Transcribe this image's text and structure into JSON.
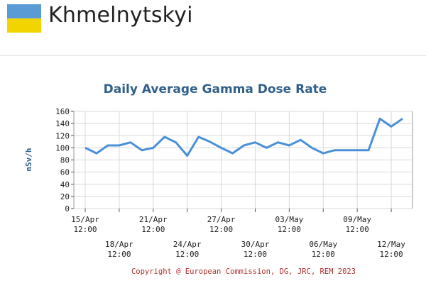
{
  "header": {
    "city": "Khmelnytskyi",
    "flag_colors": [
      "#5b9bd5",
      "#f2d500"
    ]
  },
  "chart_data": {
    "type": "line",
    "title": "Daily Average Gamma Dose Rate",
    "ylabel": "nSv/h",
    "xlabel": "",
    "ylim": [
      0,
      160
    ],
    "yticks": [
      0,
      20,
      40,
      60,
      80,
      100,
      120,
      140,
      160
    ],
    "grid": true,
    "line_color": "#4a90d9",
    "x_start_label_index": 0,
    "x_tick_labels": [
      {
        "line1": "15/Apr",
        "line2": "12:00",
        "row": 0
      },
      {
        "line1": "18/Apr",
        "line2": "12:00",
        "row": 1
      },
      {
        "line1": "21/Apr",
        "line2": "12:00",
        "row": 0
      },
      {
        "line1": "24/Apr",
        "line2": "12:00",
        "row": 1
      },
      {
        "line1": "27/Apr",
        "line2": "12:00",
        "row": 0
      },
      {
        "line1": "30/Apr",
        "line2": "12:00",
        "row": 1
      },
      {
        "line1": "03/May",
        "line2": "12:00",
        "row": 0
      },
      {
        "line1": "06/May",
        "line2": "12:00",
        "row": 1
      },
      {
        "line1": "09/May",
        "line2": "12:00",
        "row": 0
      },
      {
        "line1": "12/May",
        "line2": "12:00",
        "row": 1
      }
    ],
    "x": [
      "15/Apr",
      "16/Apr",
      "17/Apr",
      "18/Apr",
      "19/Apr",
      "20/Apr",
      "21/Apr",
      "22/Apr",
      "23/Apr",
      "24/Apr",
      "25/Apr",
      "26/Apr",
      "27/Apr",
      "28/Apr",
      "29/Apr",
      "30/Apr",
      "01/May",
      "02/May",
      "03/May",
      "04/May",
      "05/May",
      "06/May",
      "07/May",
      "08/May",
      "09/May",
      "10/May",
      "11/May",
      "12/May",
      "13/May"
    ],
    "values": [
      100,
      91,
      104,
      104,
      109,
      96,
      100,
      118,
      109,
      87,
      118,
      110,
      100,
      91,
      104,
      109,
      100,
      109,
      104,
      113,
      100,
      91,
      96,
      96,
      96,
      96,
      148,
      135,
      148
    ],
    "copyright": "Copyright @ European Commission, DG, JRC, REM 2023"
  }
}
